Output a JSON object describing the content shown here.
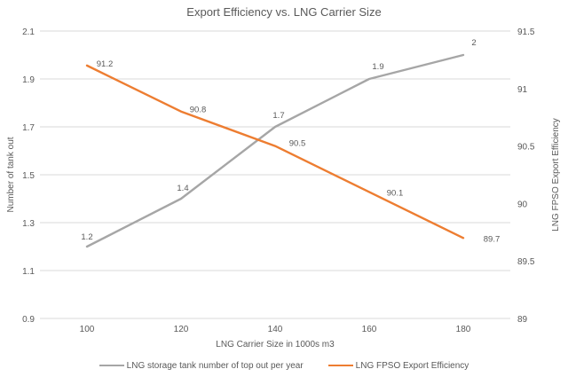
{
  "chart_data": {
    "type": "line",
    "title": "Export Efficiency vs. LNG Carrier Size",
    "categories": [
      100,
      120,
      140,
      160,
      180
    ],
    "xlabel": "LNG Carrier Size in 1000s m3",
    "series": [
      {
        "name": "LNG storage tank number of top out per year",
        "axis": "left",
        "color": "#A6A6A6",
        "values": [
          1.2,
          1.4,
          1.7,
          1.9,
          2
        ],
        "label_offsets": [
          [
            0,
            -8
          ],
          [
            2,
            -9
          ],
          [
            4,
            -10
          ],
          [
            10,
            -11
          ],
          [
            12,
            -11
          ]
        ]
      },
      {
        "name": "LNG FPSO Export Efficiency",
        "axis": "right",
        "color": "#ED7D31",
        "values": [
          91.2,
          90.8,
          90.5,
          90.1,
          89.7
        ],
        "label_offsets": [
          [
            20,
            1
          ],
          [
            19,
            1
          ],
          [
            25,
            0
          ],
          [
            29,
            4
          ],
          [
            32,
            4
          ]
        ]
      }
    ],
    "left_axis": {
      "label": "Number of tank out",
      "min": 0.9,
      "max": 2.1,
      "ticks": [
        2.1,
        1.9,
        1.7,
        1.5,
        1.3,
        1.1,
        0.9
      ]
    },
    "right_axis": {
      "label": "LNG FPSO Export Efficiency",
      "min": 89,
      "max": 91.5,
      "ticks": [
        91.5,
        91,
        90.5,
        90,
        89.5,
        89
      ]
    },
    "grid": true,
    "legend_position": "bottom",
    "colors": {
      "text": "#595959",
      "gridline": "#D9D9D9",
      "background": "#FFFFFF"
    }
  }
}
